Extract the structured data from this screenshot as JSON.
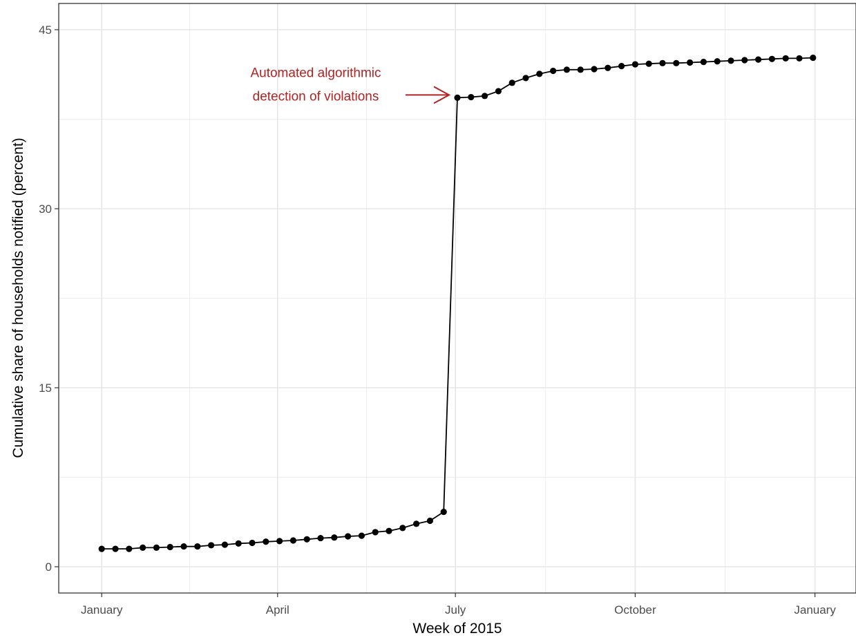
{
  "chart_data": {
    "type": "line",
    "xlabel": "Week of 2015",
    "ylabel": "Cumulative share of households notified (percent)",
    "x_ticks": [
      {
        "label": "January",
        "value": "2015-01-01"
      },
      {
        "label": "April",
        "value": "2015-04-01"
      },
      {
        "label": "July",
        "value": "2015-07-01"
      },
      {
        "label": "October",
        "value": "2015-10-01"
      },
      {
        "label": "January",
        "value": "2016-01-01"
      }
    ],
    "y_ticks": [
      0,
      15,
      30,
      45
    ],
    "xlim": [
      "2014-12-10",
      "2016-01-22"
    ],
    "ylim": [
      -2.2,
      47.2
    ],
    "grid": true,
    "series": [
      {
        "x": [
          "2015-01-01",
          "2015-01-08",
          "2015-01-15",
          "2015-01-22",
          "2015-01-29",
          "2015-02-05",
          "2015-02-12",
          "2015-02-19",
          "2015-02-26",
          "2015-03-05",
          "2015-03-12",
          "2015-03-19",
          "2015-03-26",
          "2015-04-02",
          "2015-04-09",
          "2015-04-16",
          "2015-04-23",
          "2015-04-30",
          "2015-05-07",
          "2015-05-14",
          "2015-05-21",
          "2015-05-28",
          "2015-06-04",
          "2015-06-11",
          "2015-06-18",
          "2015-06-25",
          "2015-07-02",
          "2015-07-09",
          "2015-07-16",
          "2015-07-23",
          "2015-07-30",
          "2015-08-06",
          "2015-08-13",
          "2015-08-20",
          "2015-08-27",
          "2015-09-03",
          "2015-09-10",
          "2015-09-17",
          "2015-09-24",
          "2015-10-01",
          "2015-10-08",
          "2015-10-15",
          "2015-10-22",
          "2015-10-29",
          "2015-11-05",
          "2015-11-12",
          "2015-11-19",
          "2015-11-26",
          "2015-12-03",
          "2015-12-10",
          "2015-12-17",
          "2015-12-24",
          "2015-12-31"
        ],
        "y": [
          1.5,
          1.5,
          1.5,
          1.6,
          1.6,
          1.65,
          1.7,
          1.7,
          1.8,
          1.85,
          1.95,
          2.0,
          2.1,
          2.15,
          2.2,
          2.3,
          2.4,
          2.45,
          2.55,
          2.6,
          2.9,
          3.0,
          3.25,
          3.6,
          3.85,
          4.6,
          39.3,
          39.35,
          39.45,
          39.85,
          40.55,
          40.95,
          41.3,
          41.55,
          41.65,
          41.65,
          41.7,
          41.8,
          41.95,
          42.1,
          42.15,
          42.2,
          42.2,
          42.25,
          42.3,
          42.35,
          42.4,
          42.45,
          42.5,
          42.55,
          42.6,
          42.6,
          42.65
        ]
      }
    ],
    "annotation": {
      "lines": [
        "Automated algorithmic",
        "detection of violations"
      ],
      "points_to": {
        "x": "2015-07-02",
        "y": 39.3
      },
      "color": "#b22222"
    }
  }
}
